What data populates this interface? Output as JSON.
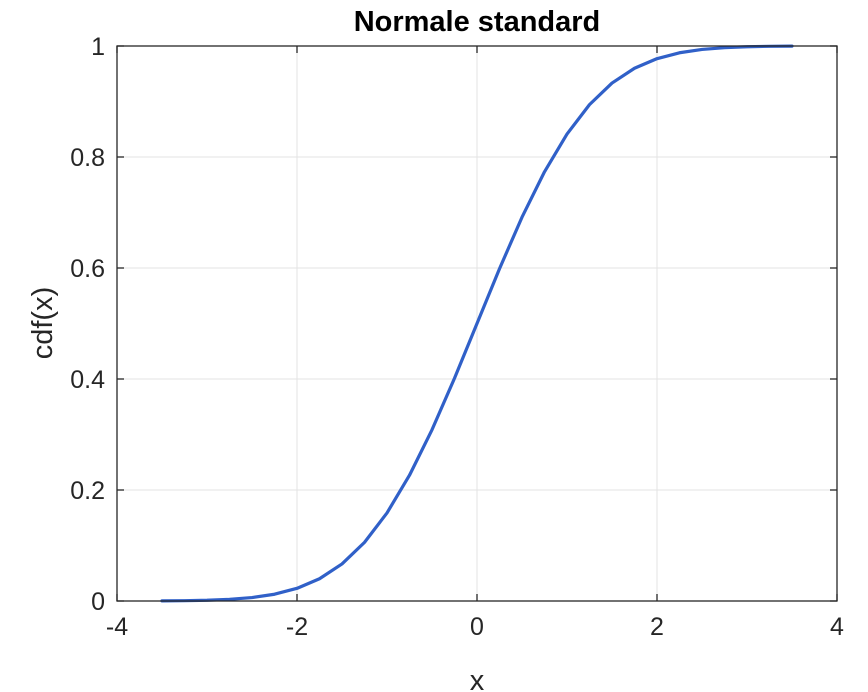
{
  "chart_data": {
    "type": "line",
    "title": "Normale standard",
    "xlabel": "x",
    "ylabel": "cdf(x)",
    "xlim": [
      -4,
      4
    ],
    "ylim": [
      0,
      1
    ],
    "x_ticks": [
      -4,
      -2,
      0,
      2,
      4
    ],
    "y_ticks": [
      0,
      0.2,
      0.4,
      0.6,
      0.8,
      1
    ],
    "x_tick_labels": [
      "-4",
      "-2",
      "0",
      "2",
      "4"
    ],
    "y_tick_labels": [
      "0",
      "0.2",
      "0.4",
      "0.6",
      "0.8",
      "1"
    ],
    "grid": true,
    "box": true,
    "series": [
      {
        "color": "#3060C8",
        "x": [
          -3.5,
          -3.25,
          -3.0,
          -2.75,
          -2.5,
          -2.25,
          -2.0,
          -1.75,
          -1.5,
          -1.25,
          -1.0,
          -0.75,
          -0.5,
          -0.25,
          0.0,
          0.25,
          0.5,
          0.75,
          1.0,
          1.25,
          1.5,
          1.75,
          2.0,
          2.25,
          2.5,
          2.75,
          3.0,
          3.25,
          3.5
        ],
        "y": [
          0.0002,
          0.0006,
          0.0013,
          0.003,
          0.0062,
          0.0122,
          0.0228,
          0.0401,
          0.0668,
          0.1056,
          0.1587,
          0.2266,
          0.3085,
          0.4013,
          0.5,
          0.5987,
          0.6915,
          0.7734,
          0.8413,
          0.8944,
          0.9332,
          0.9599,
          0.9772,
          0.9878,
          0.9938,
          0.997,
          0.9987,
          0.9994,
          0.9998
        ]
      }
    ]
  }
}
